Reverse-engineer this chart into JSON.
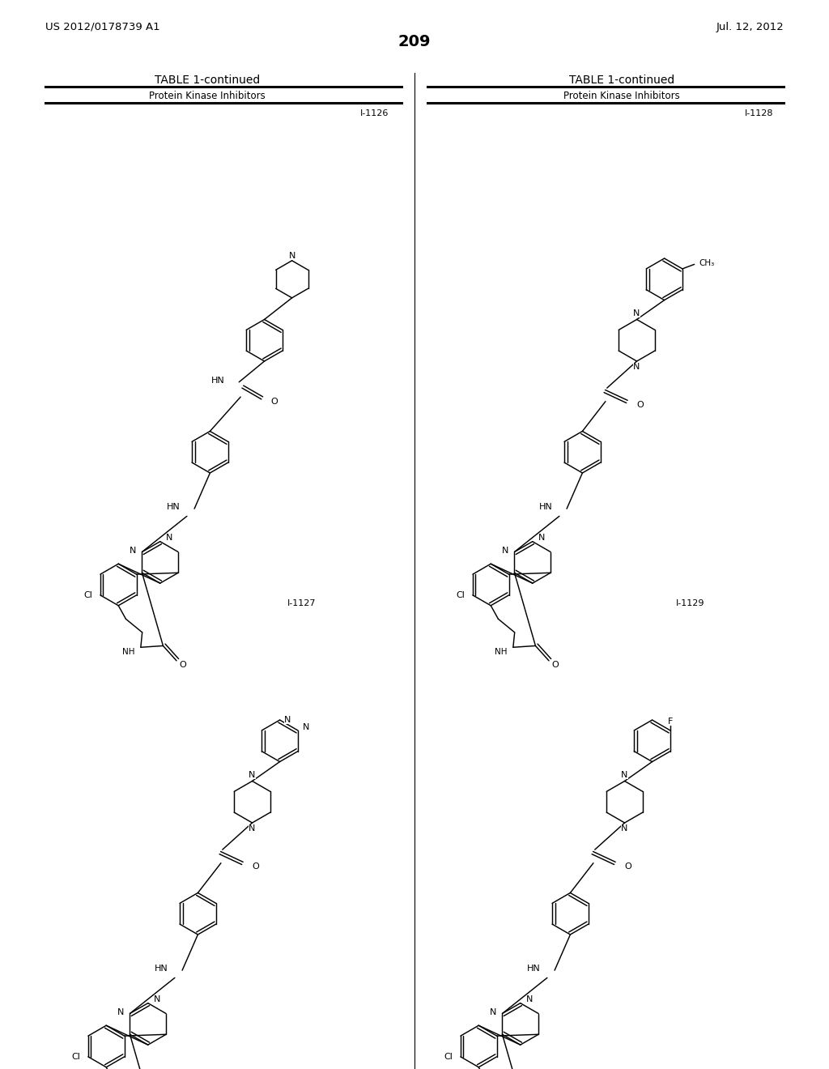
{
  "background_color": "#ffffff",
  "page_number": "209",
  "patent_left": "US 2012/0178739 A1",
  "patent_right": "Jul. 12, 2012",
  "table_title": "TABLE 1-continued",
  "table_subtitle": "Protein Kinase Inhibitors",
  "line_color": "#000000",
  "text_color": "#000000"
}
